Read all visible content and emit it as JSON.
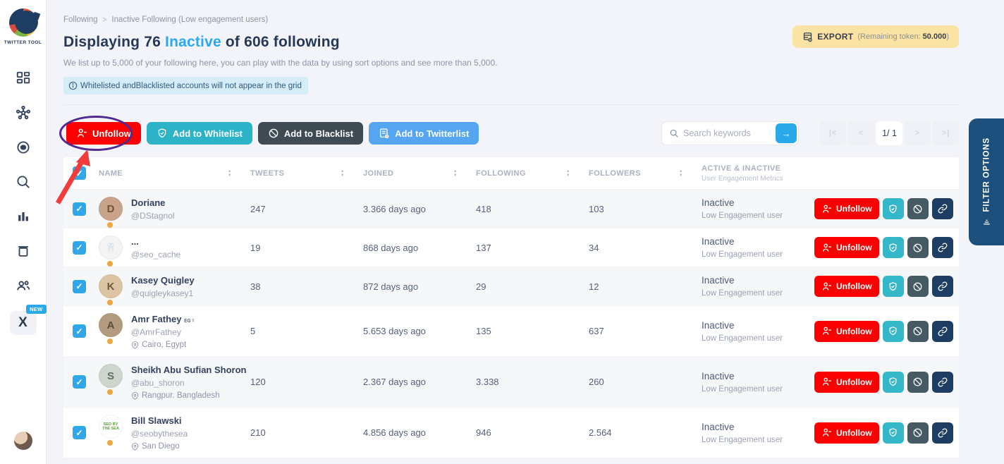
{
  "sidebar": {
    "logo_text": "TWITTER TOOL",
    "nav": [
      {
        "icon": "dashboard-icon"
      },
      {
        "icon": "network-icon"
      },
      {
        "icon": "audience-icon"
      },
      {
        "icon": "search-icon"
      },
      {
        "icon": "analytics-icon"
      },
      {
        "icon": "trash-icon"
      },
      {
        "icon": "users-icon"
      },
      {
        "icon": "x-twitter-icon",
        "badge": "NEW"
      }
    ]
  },
  "header": {
    "breadcrumb": [
      "Following",
      "Inactive Following (Low engagement users)"
    ],
    "breadcrumb_separator": ">",
    "title_prefix": "Displaying 76 ",
    "title_highlight": "Inactive",
    "title_suffix": " of 606 following",
    "subtitle": "We list up to 5,000 of your following here, you can play with the data by using sort options and see more than 5,000.",
    "info_banner": "Whitelisted andBlacklisted accounts will not appear in the grid",
    "export": {
      "label": "EXPORT",
      "remaining_prefix": "(Remaining token: ",
      "remaining_value": "50.000",
      "remaining_suffix": ")"
    }
  },
  "toolbar": {
    "unfollow_label": "Unfollow",
    "whitelist_label": "Add to Whitelist",
    "blacklist_label": "Add to Blacklist",
    "twitterlist_label": "Add to Twitterlist",
    "search_placeholder": "Search keywords",
    "search_value": "",
    "search_go": "→",
    "pagination": [
      {
        "label": "|<",
        "name": "first-page-button",
        "current": false
      },
      {
        "label": "<",
        "name": "prev-page-button",
        "current": false
      },
      {
        "label": "1/ 1",
        "name": "page-indicator",
        "current": true
      },
      {
        "label": ">",
        "name": "next-page-button",
        "current": false
      },
      {
        "label": ">|",
        "name": "last-page-button",
        "current": false
      }
    ]
  },
  "table": {
    "headers": [
      "NAME",
      "TWEETS",
      "JOINED",
      "FOLLOWING",
      "FOLLOWERS"
    ],
    "status_header": {
      "line1": "ACTIVE & INACTIVE",
      "line2": "User Engagement Metrics"
    },
    "row_unfollow_label": "Unfollow",
    "rows": [
      {
        "name": "Doriane",
        "suffix": "",
        "handle": "@DStagnol",
        "location": "",
        "tweets": "247",
        "joined": "3.366 days ago",
        "following": "418",
        "followers": "103",
        "status": "Inactive",
        "status_sub": "Low Engagement user",
        "avatar": {
          "text": "D",
          "bg": "#c9a489",
          "fg": "#6e533c",
          "size": "15"
        }
      },
      {
        "name": "...",
        "suffix": "",
        "handle": "@seo_cache",
        "location": "",
        "tweets": "19",
        "joined": "868 days ago",
        "following": "137",
        "followers": "34",
        "status": "Inactive",
        "status_sub": "Low Engagement user",
        "avatar": {
          "text": "🦷",
          "bg": "#f4f4f4",
          "fg": "#b9bec7",
          "size": "12"
        }
      },
      {
        "name": "Kasey Quigley",
        "suffix": "",
        "handle": "@quigleykasey1",
        "location": "",
        "tweets": "38",
        "joined": "872 days ago",
        "following": "29",
        "followers": "12",
        "status": "Inactive",
        "status_sub": "Low Engagement user",
        "avatar": {
          "text": "K",
          "bg": "#ddc4a2",
          "fg": "#6e5a40",
          "size": "15"
        }
      },
      {
        "name": "Amr Fathey",
        "suffix": "ᴇɢ♀",
        "handle": "@AmrFathey",
        "location": "Cairo, Egypt",
        "tweets": "5",
        "joined": "5.653 days ago",
        "following": "135",
        "followers": "637",
        "status": "Inactive",
        "status_sub": "Low Engagement user",
        "avatar": {
          "text": "A",
          "bg": "#b39b7d",
          "fg": "#5d4c36",
          "size": "15"
        }
      },
      {
        "name": "Sheikh Abu Sufian Shoron",
        "suffix": "",
        "handle": "@abu_shoron",
        "location": "Rangpur. Bangladesh",
        "tweets": "120",
        "joined": "2.367 days ago",
        "following": "3.338",
        "followers": "260",
        "status": "Inactive",
        "status_sub": "Low Engagement user",
        "avatar": {
          "text": "S",
          "bg": "#cdd6cd",
          "fg": "#5f6d5f",
          "size": "15"
        }
      },
      {
        "name": "Bill Slawski",
        "suffix": "",
        "handle": "@seobythesea",
        "location": "San Diego",
        "tweets": "210",
        "joined": "4.856 days ago",
        "following": "946",
        "followers": "2.564",
        "status": "Inactive",
        "status_sub": "Low Engagement user",
        "avatar": {
          "text": "SEO BY THE SEA",
          "bg": "#ffffff",
          "fg": "#5a9e32",
          "size": "5.5"
        }
      }
    ]
  },
  "filter_panel": {
    "label": "FILTER OPTIONS"
  },
  "colors": {
    "accent_blue": "#29a9f1",
    "red": "#fa0000",
    "teal": "#2db3c7",
    "dark": "#3e4b52",
    "button_blue": "#55a5f0",
    "navy": "#1d3d63",
    "filter_tab": "#1d4f7c",
    "export_yellow": "#fbe3a3",
    "presence_orange": "#eda73f",
    "checkbox_blue": "#2fa7e9",
    "annotation_circle": "#4f2a93",
    "annotation_arrow": "#f23b3b"
  }
}
